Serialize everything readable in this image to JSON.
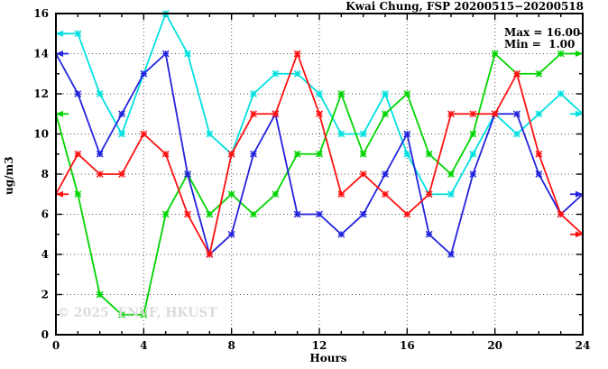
{
  "header": {
    "title": "Kwai Chung, FSP 20200515−20200518"
  },
  "legend": {
    "max_label": "Max = 16.00",
    "min_label": "Min =  1.00"
  },
  "watermark": "© 2025  ENVF, HKUST",
  "chart_data": {
    "type": "line",
    "title": "Kwai Chung, FSP 20200515−20200518",
    "xlabel": "Hours",
    "ylabel": "ug/m3",
    "xlim": [
      0,
      24
    ],
    "ylim": [
      0,
      16
    ],
    "x_ticks": [
      0,
      4,
      8,
      12,
      16,
      20,
      24
    ],
    "y_ticks": [
      0,
      2,
      4,
      6,
      8,
      10,
      12,
      14,
      16
    ],
    "minor_tick_step": 1,
    "grid": true,
    "legend_position": "top-right-inside",
    "stats": {
      "max": 16.0,
      "min": 1.0
    },
    "x": [
      0,
      1,
      2,
      3,
      4,
      5,
      6,
      7,
      8,
      9,
      10,
      11,
      12,
      13,
      14,
      15,
      16,
      17,
      18,
      19,
      20,
      21,
      22,
      23,
      24
    ],
    "series": [
      {
        "name": "series-cyan",
        "color": "#00e0e0",
        "values": [
          15,
          15,
          12,
          10,
          13,
          16,
          14,
          10,
          9,
          12,
          13,
          13,
          12,
          10,
          10,
          12,
          9,
          7,
          7,
          9,
          11,
          10,
          11,
          12,
          11
        ]
      },
      {
        "name": "series-green",
        "color": "#00d400",
        "values": [
          11,
          7,
          2,
          1,
          1,
          6,
          8,
          6,
          7,
          6,
          7,
          9,
          9,
          12,
          9,
          11,
          12,
          9,
          8,
          10,
          14,
          13,
          13,
          14,
          14
        ]
      },
      {
        "name": "series-blue",
        "color": "#2222dd",
        "values": [
          14,
          12,
          9,
          11,
          13,
          14,
          8,
          4,
          5,
          9,
          11,
          6,
          6,
          5,
          6,
          8,
          10,
          5,
          4,
          8,
          11,
          11,
          8,
          6,
          7
        ]
      },
      {
        "name": "series-red",
        "color": "#ff1010",
        "values": [
          7,
          9,
          8,
          8,
          10,
          9,
          6,
          4,
          9,
          11,
          11,
          14,
          11,
          7,
          8,
          7,
          6,
          7,
          11,
          11,
          11,
          13,
          9,
          6,
          5
        ]
      }
    ]
  },
  "axis_style": {
    "border_color": "#000000",
    "grid_color": "#555555"
  }
}
